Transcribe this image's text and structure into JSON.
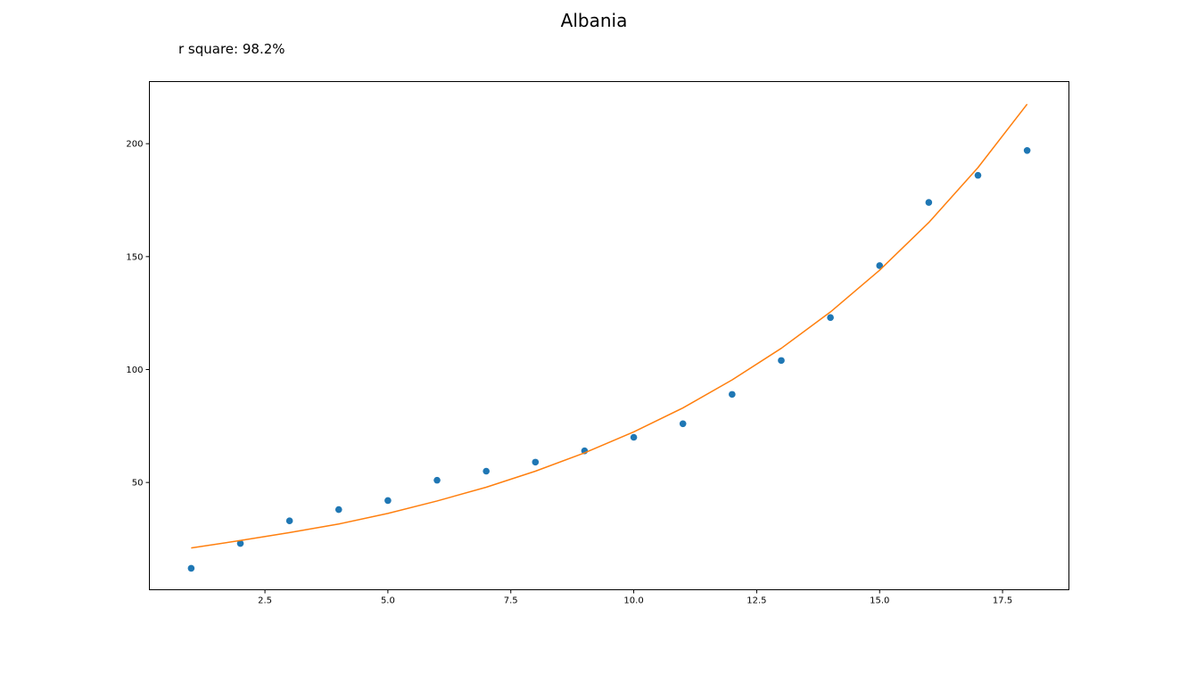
{
  "chart_data": {
    "type": "scatter",
    "title": "Albania",
    "annotation": "r square: 98.2%",
    "xlabel": "",
    "ylabel": "",
    "xlim": [
      0.15,
      18.85
    ],
    "ylim": [
      2.5,
      227.5
    ],
    "xticks": [
      2.5,
      5.0,
      7.5,
      10.0,
      12.5,
      15.0,
      17.5
    ],
    "xtick_labels": [
      "2.5",
      "5.0",
      "7.5",
      "10.0",
      "12.5",
      "15.0",
      "17.5"
    ],
    "yticks": [
      50,
      100,
      150,
      200
    ],
    "ytick_labels": [
      "50",
      "100",
      "150",
      "200"
    ],
    "grid": false,
    "series": [
      {
        "kind": "scatter",
        "color": "#1f77b4",
        "x": [
          1,
          2,
          3,
          4,
          5,
          6,
          7,
          8,
          9,
          10,
          11,
          12,
          13,
          14,
          15,
          16,
          17,
          18
        ],
        "y": [
          12,
          23,
          33,
          38,
          42,
          51,
          55,
          59,
          64,
          70,
          76,
          89,
          104,
          123,
          146,
          174,
          186,
          197
        ]
      },
      {
        "kind": "line",
        "color": "#ff7f0e",
        "x": [
          1,
          2,
          3,
          4,
          5,
          6,
          7,
          8,
          9,
          10,
          11,
          12,
          13,
          14,
          15,
          16,
          17,
          18
        ],
        "y": [
          21,
          24.3,
          27.8,
          31.6,
          36.3,
          41.8,
          47.9,
          55,
          63.1,
          72.4,
          83,
          95.4,
          109.4,
          125.5,
          144,
          165.1,
          189.4,
          217.5
        ]
      }
    ]
  }
}
